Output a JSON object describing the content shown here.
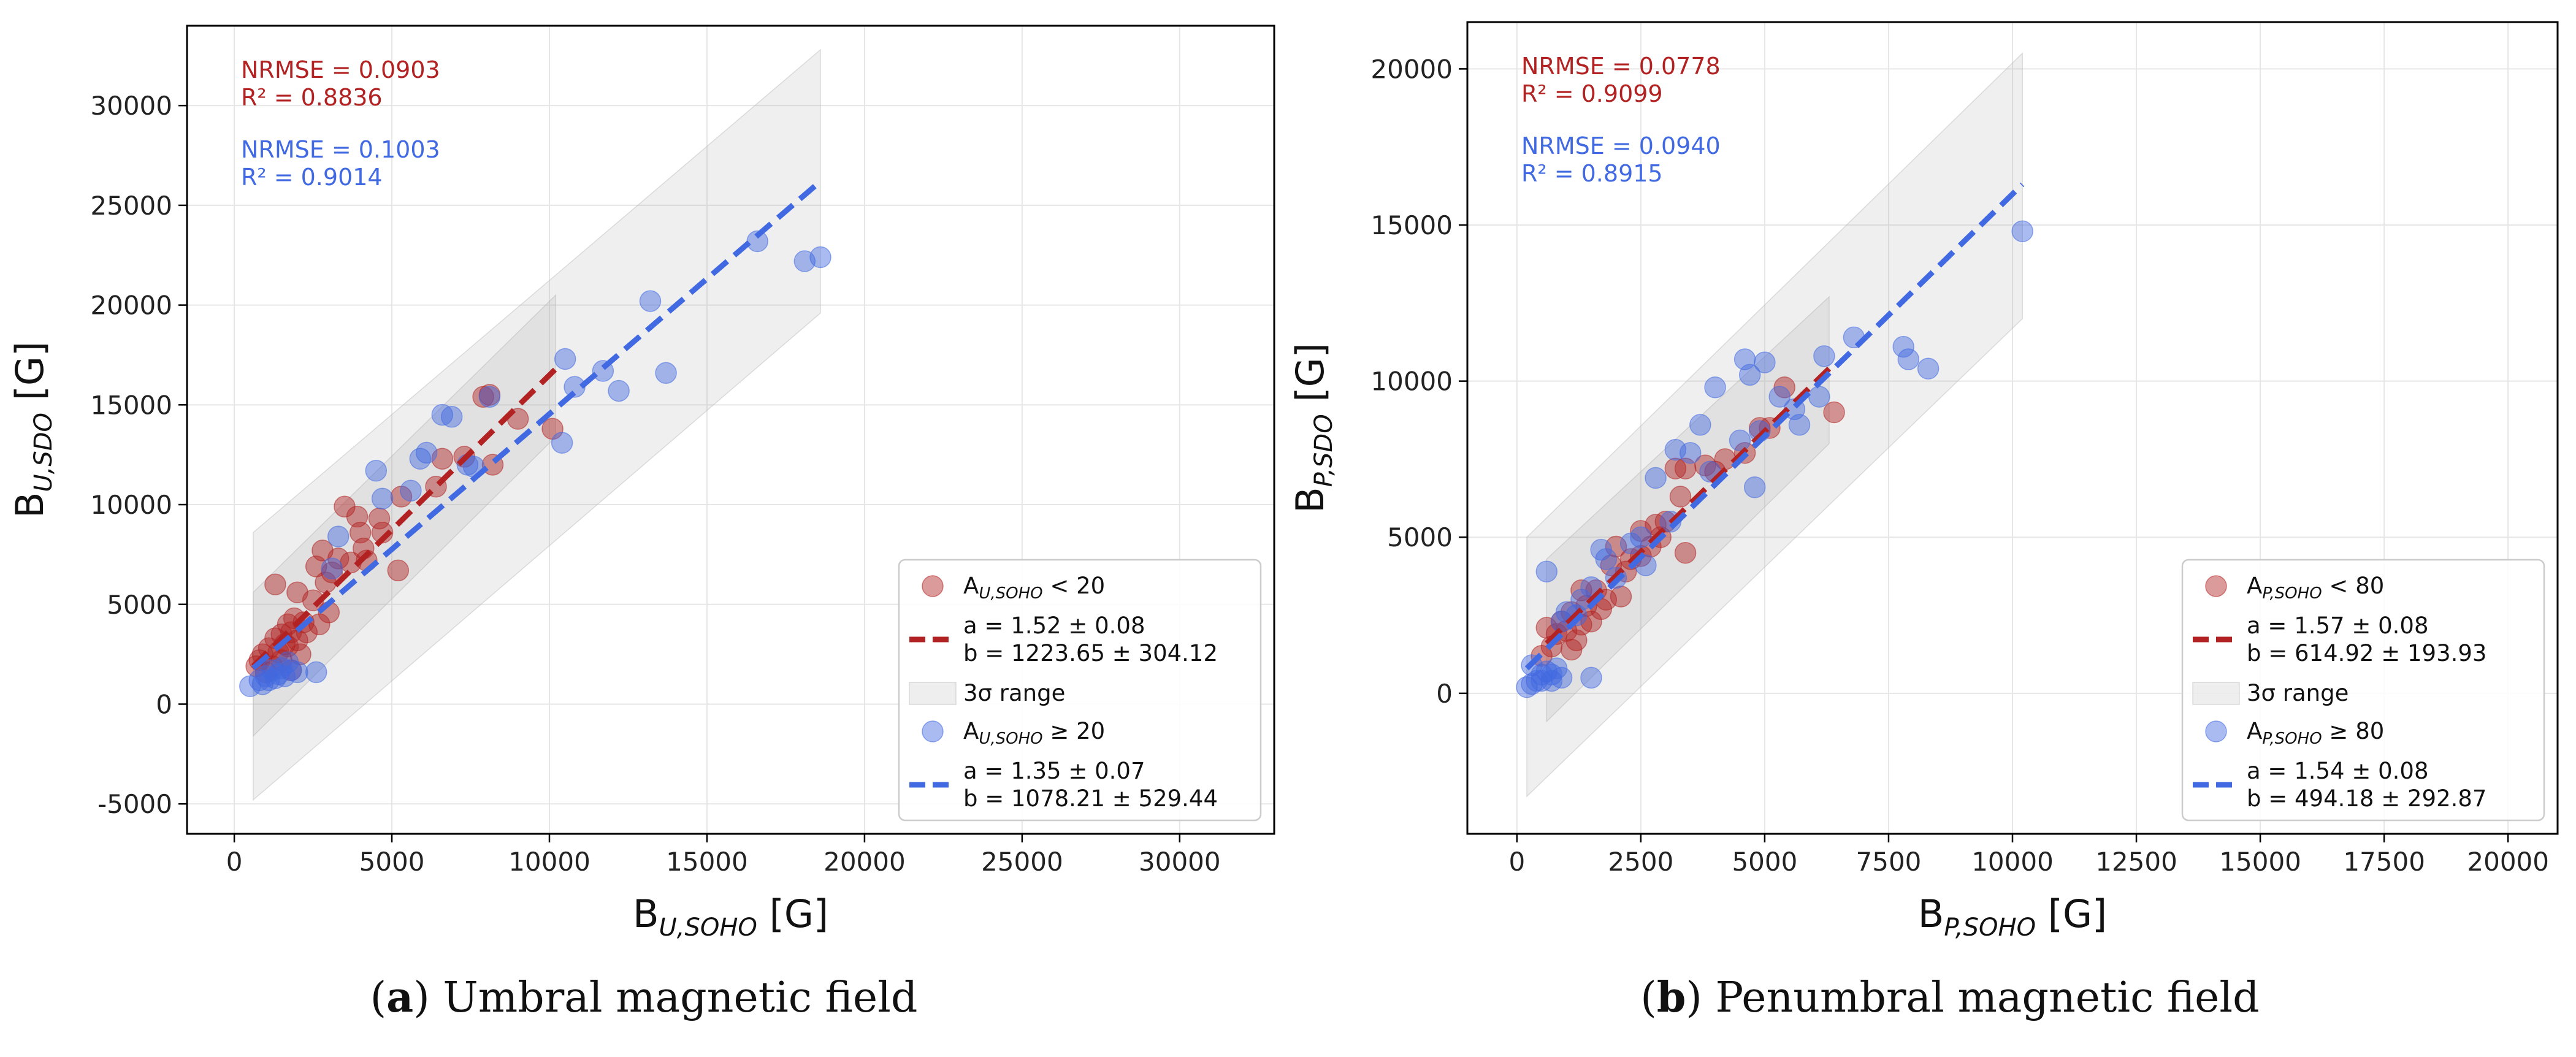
{
  "chart_data": [
    {
      "type": "scatter",
      "panel_letter": "a",
      "caption": "Umbral magnetic field",
      "xlabel": {
        "base": "B",
        "sub": "U,SOHO",
        "unit": " [G]"
      },
      "ylabel": {
        "base": "B",
        "sub": "U,SDO",
        "unit": "  [G]"
      },
      "xlim": [
        -1500,
        33000
      ],
      "ylim": [
        -6500,
        34000
      ],
      "xticks": [
        0,
        5000,
        10000,
        15000,
        20000,
        25000,
        30000
      ],
      "yticks": [
        -5000,
        0,
        5000,
        10000,
        15000,
        20000,
        25000,
        30000
      ],
      "grid": true,
      "stats": [
        {
          "color": "#b22222",
          "nrmse": "NRMSE = 0.0903",
          "r2": "R² = 0.8836"
        },
        {
          "color": "#4169e1",
          "nrmse": "NRMSE = 0.1003",
          "r2": "R² = 0.9014"
        }
      ],
      "legend_position": "lower-right",
      "legend": {
        "red_points": {
          "base": "A",
          "sub": "U,SOHO",
          "rest": " < 20"
        },
        "red_fit": {
          "a": "a = 1.52 ± 0.08",
          "b": "b = 1223.65 ± 304.12"
        },
        "band": "3σ range",
        "blue_points": {
          "base": "A",
          "sub": "U,SOHO",
          "rest": " ≥ 20"
        },
        "blue_fit": {
          "a": "a = 1.35 ± 0.07",
          "b": "b = 1078.21 ± 529.44"
        }
      },
      "series": [
        {
          "name": "A_U,SOHO < 20",
          "color": "#b22222",
          "fit": {
            "x": [
              600,
              10200
            ],
            "y": [
              1900,
              16800
            ]
          },
          "band": [
            {
              "x": 600,
              "lo": -1600,
              "hi": 5600
            },
            {
              "x": 10200,
              "lo": 13400,
              "hi": 20500
            }
          ],
          "points": [
            [
              700,
              1900
            ],
            [
              800,
              2200
            ],
            [
              900,
              2500
            ],
            [
              1000,
              1600
            ],
            [
              1100,
              2800
            ],
            [
              1200,
              1900
            ],
            [
              1300,
              6000
            ],
            [
              1300,
              3300
            ],
            [
              1400,
              2600
            ],
            [
              1500,
              3500
            ],
            [
              1500,
              2200
            ],
            [
              1600,
              3000
            ],
            [
              1700,
              2900
            ],
            [
              1700,
              4000
            ],
            [
              1800,
              3600
            ],
            [
              1800,
              1700
            ],
            [
              1900,
              4300
            ],
            [
              2000,
              3200
            ],
            [
              2000,
              5600
            ],
            [
              2100,
              2500
            ],
            [
              2200,
              4100
            ],
            [
              2300,
              3600
            ],
            [
              2500,
              5200
            ],
            [
              2600,
              6900
            ],
            [
              2700,
              4000
            ],
            [
              2800,
              7700
            ],
            [
              2900,
              6100
            ],
            [
              3000,
              4600
            ],
            [
              3100,
              6600
            ],
            [
              3300,
              7300
            ],
            [
              3500,
              9900
            ],
            [
              3700,
              7100
            ],
            [
              3900,
              9400
            ],
            [
              4000,
              8600
            ],
            [
              4100,
              7800
            ],
            [
              4200,
              7200
            ],
            [
              4600,
              9300
            ],
            [
              4700,
              8600
            ],
            [
              5200,
              6700
            ],
            [
              5300,
              10400
            ],
            [
              6400,
              10900
            ],
            [
              6600,
              12300
            ],
            [
              7300,
              12400
            ],
            [
              7900,
              15400
            ],
            [
              8100,
              15500
            ],
            [
              8200,
              12000
            ],
            [
              9000,
              14300
            ],
            [
              10100,
              13800
            ]
          ]
        },
        {
          "name": "A_U,SOHO ≥ 20",
          "color": "#4169e1",
          "fit": {
            "x": [
              600,
              18600
            ],
            "y": [
              1800,
              26200
            ]
          },
          "band": [
            {
              "x": 600,
              "lo": -4800,
              "hi": 8600
            },
            {
              "x": 18600,
              "lo": 19600,
              "hi": 32800
            }
          ],
          "points": [
            [
              500,
              900
            ],
            [
              800,
              1200
            ],
            [
              900,
              1000
            ],
            [
              1000,
              1400
            ],
            [
              1100,
              1200
            ],
            [
              1200,
              1700
            ],
            [
              1300,
              1300
            ],
            [
              1400,
              1500
            ],
            [
              1500,
              1800
            ],
            [
              1600,
              1400
            ],
            [
              1700,
              2100
            ],
            [
              1800,
              1700
            ],
            [
              2000,
              1600
            ],
            [
              2600,
              1600
            ],
            [
              3100,
              6800
            ],
            [
              3300,
              8400
            ],
            [
              4500,
              11700
            ],
            [
              4700,
              10300
            ],
            [
              5600,
              10700
            ],
            [
              5900,
              12300
            ],
            [
              6100,
              12600
            ],
            [
              6600,
              14500
            ],
            [
              6900,
              14400
            ],
            [
              7400,
              12000
            ],
            [
              7600,
              11900
            ],
            [
              8100,
              15400
            ],
            [
              10400,
              13100
            ],
            [
              10500,
              17300
            ],
            [
              10800,
              15900
            ],
            [
              11700,
              16700
            ],
            [
              12200,
              15700
            ],
            [
              13200,
              20200
            ],
            [
              13700,
              16600
            ],
            [
              16600,
              23200
            ],
            [
              18100,
              22200
            ],
            [
              18600,
              22400
            ]
          ]
        }
      ]
    },
    {
      "type": "scatter",
      "panel_letter": "b",
      "caption": "Penumbral magnetic field",
      "xlabel": {
        "base": "B",
        "sub": "P,SOHO",
        "unit": " [G]"
      },
      "ylabel": {
        "base": "B",
        "sub": "P,SDO",
        "unit": "  [G]"
      },
      "xlim": [
        -1000,
        21000
      ],
      "ylim": [
        -4500,
        21500
      ],
      "xticks": [
        0,
        2500,
        5000,
        7500,
        10000,
        12500,
        15000,
        17500,
        20000
      ],
      "yticks": [
        0,
        5000,
        10000,
        15000,
        20000
      ],
      "grid": true,
      "stats": [
        {
          "color": "#b22222",
          "nrmse": "NRMSE = 0.0778",
          "r2": "R² = 0.9099"
        },
        {
          "color": "#4169e1",
          "nrmse": "NRMSE = 0.0940",
          "r2": "R² = 0.8915"
        }
      ],
      "legend_position": "lower-right",
      "legend": {
        "red_points": {
          "base": "A",
          "sub": "P,SOHO",
          "rest": " < 80"
        },
        "red_fit": {
          "a": "a = 1.57 ± 0.08",
          "b": "b = 614.92 ± 193.93"
        },
        "band": "3σ range",
        "blue_points": {
          "base": "A",
          "sub": "P,SOHO",
          "rest": " ≥ 80"
        },
        "blue_fit": {
          "a": "a = 1.54 ± 0.08",
          "b": "b = 494.18 ± 292.87"
        }
      },
      "series": [
        {
          "name": "A_P,SOHO < 80",
          "color": "#b22222",
          "fit": {
            "x": [
              600,
              6300
            ],
            "y": [
              1600,
              10400
            ]
          },
          "band": [
            {
              "x": 600,
              "lo": -900,
              "hi": 4300
            },
            {
              "x": 6300,
              "lo": 8000,
              "hi": 12700
            }
          ],
          "points": [
            [
              500,
              1200
            ],
            [
              600,
              2100
            ],
            [
              700,
              1500
            ],
            [
              800,
              1900
            ],
            [
              900,
              2300
            ],
            [
              1000,
              2000
            ],
            [
              1100,
              1400
            ],
            [
              1100,
              2600
            ],
            [
              1200,
              1700
            ],
            [
              1300,
              3300
            ],
            [
              1300,
              2200
            ],
            [
              1400,
              2800
            ],
            [
              1500,
              2300
            ],
            [
              1600,
              3300
            ],
            [
              1700,
              2700
            ],
            [
              1800,
              3000
            ],
            [
              1900,
              4100
            ],
            [
              2000,
              4700
            ],
            [
              2100,
              3100
            ],
            [
              2200,
              3900
            ],
            [
              2300,
              4300
            ],
            [
              2500,
              4400
            ],
            [
              2500,
              5200
            ],
            [
              2700,
              4700
            ],
            [
              2800,
              5400
            ],
            [
              2900,
              5000
            ],
            [
              3000,
              5500
            ],
            [
              3200,
              7200
            ],
            [
              3300,
              6300
            ],
            [
              3400,
              7200
            ],
            [
              3400,
              4500
            ],
            [
              3800,
              7300
            ],
            [
              4000,
              7100
            ],
            [
              4200,
              7500
            ],
            [
              4600,
              7700
            ],
            [
              4900,
              8500
            ],
            [
              5100,
              8500
            ],
            [
              5400,
              9800
            ],
            [
              6400,
              9000
            ]
          ]
        },
        {
          "name": "A_P,SOHO ≥ 80",
          "color": "#4169e1",
          "fit": {
            "x": [
              200,
              10200
            ],
            "y": [
              800,
              16300
            ]
          },
          "band": [
            {
              "x": 200,
              "lo": -3300,
              "hi": 5000
            },
            {
              "x": 10200,
              "lo": 12000,
              "hi": 20500
            }
          ],
          "points": [
            [
              200,
              200
            ],
            [
              300,
              300
            ],
            [
              300,
              900
            ],
            [
              400,
              400
            ],
            [
              500,
              600
            ],
            [
              500,
              400
            ],
            [
              600,
              700
            ],
            [
              600,
              3900
            ],
            [
              700,
              600
            ],
            [
              700,
              400
            ],
            [
              800,
              800
            ],
            [
              900,
              500
            ],
            [
              900,
              2300
            ],
            [
              1000,
              2600
            ],
            [
              1200,
              2500
            ],
            [
              1300,
              3000
            ],
            [
              1500,
              3400
            ],
            [
              1500,
              500
            ],
            [
              1700,
              4600
            ],
            [
              1800,
              4300
            ],
            [
              2000,
              3700
            ],
            [
              2300,
              4800
            ],
            [
              2500,
              5000
            ],
            [
              2600,
              4100
            ],
            [
              2800,
              6900
            ],
            [
              3100,
              5500
            ],
            [
              3200,
              7800
            ],
            [
              3500,
              7700
            ],
            [
              3700,
              8600
            ],
            [
              3900,
              7100
            ],
            [
              4000,
              9800
            ],
            [
              4500,
              8100
            ],
            [
              4600,
              10700
            ],
            [
              4700,
              10200
            ],
            [
              4800,
              6600
            ],
            [
              4900,
              8400
            ],
            [
              5000,
              10600
            ],
            [
              5300,
              9500
            ],
            [
              5600,
              9100
            ],
            [
              5700,
              8600
            ],
            [
              6100,
              9500
            ],
            [
              6200,
              10800
            ],
            [
              6800,
              11400
            ],
            [
              7800,
              11100
            ],
            [
              7900,
              10700
            ],
            [
              8300,
              10400
            ],
            [
              10200,
              14800
            ]
          ]
        }
      ]
    }
  ]
}
